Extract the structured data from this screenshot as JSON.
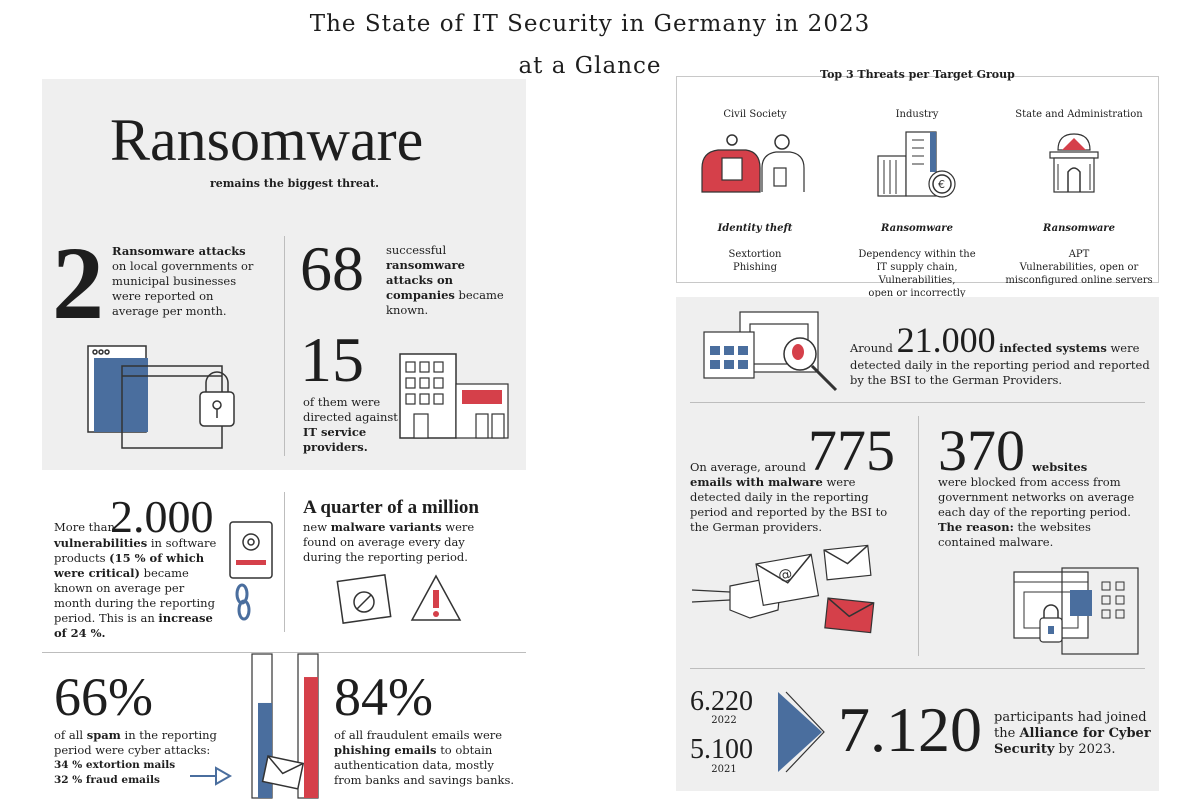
{
  "title": {
    "line1": "The State of IT Security in Germany in 2023",
    "line2": "at a Glance"
  },
  "ransomware": {
    "headline": "Ransomware",
    "subline": "remains the biggest threat.",
    "stat1_number": "2",
    "stat1_bold": "Ransomware attacks",
    "stat1_text": "on local governments or municipal businesses were reported on average per month.",
    "stat2_number": "68",
    "stat2_text1": "successful",
    "stat2_bold": "ransomware attacks on companies",
    "stat2_text2": "became known.",
    "stat3_number": "15",
    "stat3_text": "of them were directed against",
    "stat3_bold": "IT service providers."
  },
  "vulnerabilities": {
    "prefix": "More than",
    "number": "2.000",
    "bold1": "vulnerabilities",
    "text1": "in software products",
    "bold2": "(15 % of which were critical)",
    "text2": "became known on average per month during the reporting period. This is an",
    "bold3": "increase of 24 %."
  },
  "malware": {
    "headline": "A quarter of a million",
    "text1": "new",
    "bold": "malware variants",
    "text2": "were found on average every day during the reporting period."
  },
  "spam": {
    "number": "66%",
    "text1": "of all",
    "bold1": "spam",
    "text2": "in the reporting period were cyber attacks:",
    "line1": "34 % extortion mails",
    "line2": "32 % fraud emails",
    "bar_blue_fraction": 0.66,
    "bar_red_fraction": 0.84
  },
  "phishing": {
    "number": "84%",
    "text1": "of all fraudulent emails were",
    "bold": "phishing emails",
    "text2": "to obtain authentication data, mostly from banks and savings banks."
  },
  "threats": {
    "heading": "Top 3 Threats per Target Group",
    "groups": [
      {
        "name": "Civil Society",
        "top": "Identity theft",
        "rest": "Sextortion\nPhishing"
      },
      {
        "name": "Industry",
        "top": "Ransomware",
        "rest": "Dependency within the\nIT supply chain, Vulnerabilities,\nopen or incorrectly configured\nonline servers"
      },
      {
        "name": "State and Administration",
        "top": "Ransomware",
        "rest": "APT\nVulnerabilities, open or\nmisconfigured online servers"
      }
    ]
  },
  "infected": {
    "prefix": "Around",
    "number": "21.000",
    "bold": "infected systems",
    "text": "were detected daily in the reporting period and reported by the BSI to the German Providers."
  },
  "emails": {
    "prefix": "On average, around",
    "number": "775",
    "bold": "emails with malware",
    "text": "were detected daily in the reporting period and reported by the BSI to the German providers."
  },
  "websites": {
    "number": "370",
    "bold": "websites",
    "text1": "were blocked from access from government networks on average each day of the reporting period.",
    "bold2": "The reason:",
    "text2": "the websites contained malware."
  },
  "alliance": {
    "val_2022": "6.220",
    "year_2022": "2022",
    "val_2021": "5.100",
    "year_2021": "2021",
    "number": "7.120",
    "text1": "participants had joined the",
    "bold": "Alliance for Cyber Security",
    "text2": "by 2023."
  },
  "colors": {
    "blue": "#4a6e9e",
    "red": "#d5404a",
    "panel": "#efefef"
  }
}
